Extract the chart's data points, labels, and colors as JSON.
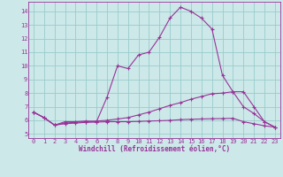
{
  "xlabel": "Windchill (Refroidissement éolien,°C)",
  "xlim": [
    -0.5,
    23.5
  ],
  "ylim": [
    4.7,
    14.7
  ],
  "yticks": [
    5,
    6,
    7,
    8,
    9,
    10,
    11,
    12,
    13,
    14
  ],
  "xticks": [
    0,
    1,
    2,
    3,
    4,
    5,
    6,
    7,
    8,
    9,
    10,
    11,
    12,
    13,
    14,
    15,
    16,
    17,
    18,
    19,
    20,
    21,
    22,
    23
  ],
  "bg_color": "#cce8e8",
  "line_color": "#993399",
  "grid_color": "#99cccc",
  "line1_x": [
    0,
    1,
    2,
    3,
    4,
    5,
    6,
    7,
    8,
    9,
    10,
    11,
    12,
    13,
    14,
    15,
    16,
    17,
    18,
    19,
    20,
    21,
    22,
    23
  ],
  "line1_y": [
    6.6,
    6.2,
    5.65,
    5.9,
    5.9,
    5.95,
    5.9,
    7.7,
    10.0,
    9.8,
    10.8,
    11.0,
    12.1,
    13.5,
    14.3,
    14.0,
    13.5,
    12.7,
    9.3,
    8.1,
    8.1,
    7.0,
    5.9,
    5.5
  ],
  "line2_x": [
    0,
    1,
    2,
    3,
    4,
    5,
    6,
    7,
    8,
    9,
    10,
    11,
    12,
    13,
    14,
    15,
    16,
    17,
    18,
    19,
    20,
    21,
    22,
    23
  ],
  "line2_y": [
    6.6,
    6.2,
    5.65,
    5.8,
    5.85,
    5.9,
    5.95,
    6.0,
    6.1,
    6.2,
    6.4,
    6.6,
    6.85,
    7.1,
    7.3,
    7.55,
    7.75,
    7.95,
    8.0,
    8.1,
    7.0,
    6.5,
    5.9,
    5.5
  ],
  "line3_x": [
    0,
    1,
    2,
    3,
    4,
    5,
    6,
    7,
    8,
    9,
    10,
    11,
    12,
    13,
    14,
    15,
    16,
    17,
    18,
    19,
    20,
    21,
    22,
    23
  ],
  "line3_y": [
    6.6,
    6.2,
    5.65,
    5.75,
    5.8,
    5.85,
    5.87,
    5.9,
    5.9,
    5.9,
    5.92,
    5.95,
    5.97,
    6.0,
    6.05,
    6.08,
    6.1,
    6.12,
    6.13,
    6.15,
    5.9,
    5.75,
    5.6,
    5.5
  ]
}
